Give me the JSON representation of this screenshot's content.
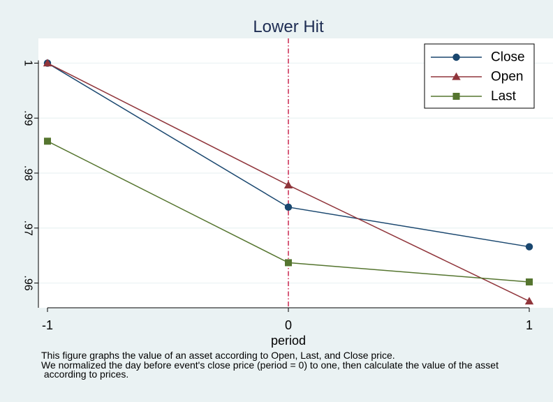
{
  "chart_data": {
    "type": "line",
    "title": "Lower Hit",
    "xlabel": "period",
    "ylabel": "",
    "x": [
      -1,
      0,
      1
    ],
    "x_ticks": [
      "-1",
      "0",
      "1"
    ],
    "y_ticks": [
      "1",
      ".99",
      ".98",
      ".97",
      ".96"
    ],
    "y_tick_values": [
      1,
      0.99,
      0.98,
      0.97,
      0.96
    ],
    "xlim": [
      -1,
      1
    ],
    "ylim": [
      0.9555,
      1.0045
    ],
    "grid": true,
    "reference_line_x": 0,
    "legend_position": "top-right",
    "series": [
      {
        "name": "Close",
        "values": [
          1.0,
          0.9738,
          0.9666
        ],
        "color": "#1a476f",
        "marker": "circle"
      },
      {
        "name": "Open",
        "values": [
          1.0,
          0.9778,
          0.9567
        ],
        "color": "#90353b",
        "marker": "triangle"
      },
      {
        "name": "Last",
        "values": [
          0.9858,
          0.9637,
          0.9602
        ],
        "color": "#55752f",
        "marker": "square"
      }
    ]
  },
  "caption_lines": [
    "This figure graphs the value of an asset according to Open, Last, and Close price.",
    "We normalized the day before event's close price (period = 0) to one, then calculate the value of the asset",
    " according to prices."
  ],
  "colors": {
    "background": "#eaf2f3",
    "plot_area": "#ffffff",
    "grid": "#eaf2f3",
    "reference_line": "#c10534"
  }
}
